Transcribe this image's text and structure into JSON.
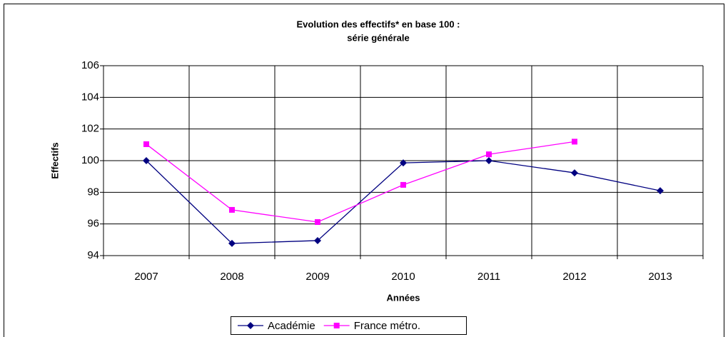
{
  "chart_data": {
    "type": "line",
    "title": "Evolution des effectifs* en base 100 :",
    "subtitle": "série générale",
    "x_label": "Années",
    "y_label": "Effectifs",
    "categories": [
      "2007",
      "2008",
      "2009",
      "2010",
      "2011",
      "2012",
      "2013"
    ],
    "series": [
      {
        "name": "Académie",
        "color": "#000080",
        "marker": "diamond",
        "values": [
          100,
          94.77,
          94.95,
          99.86,
          100.0,
          99.23,
          98.1
        ]
      },
      {
        "name": "France métro.",
        "color": "#ff00ff",
        "marker": "square",
        "values": [
          101.04,
          96.89,
          96.12,
          98.47,
          100.4,
          101.2,
          null
        ]
      }
    ],
    "ylim": [
      94,
      106
    ],
    "yticks": [
      94,
      96,
      98,
      100,
      102,
      104,
      106
    ],
    "grid": true,
    "legend": "bottom"
  }
}
